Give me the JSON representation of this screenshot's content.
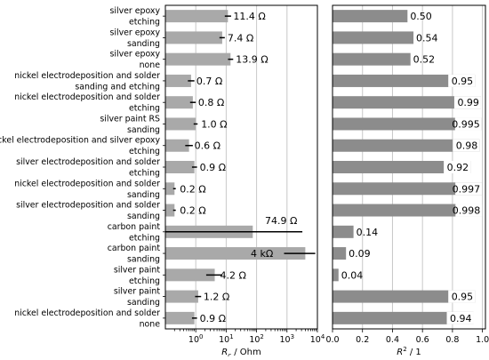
{
  "chart_data": [
    {
      "type": "bar",
      "orientation": "horizontal",
      "scale": "log",
      "xlim": [
        0.1,
        10000
      ],
      "xlabel": "R_c / Ohm",
      "x_ticks": [
        {
          "value": 1,
          "base": "10",
          "exp": "0"
        },
        {
          "value": 10,
          "base": "10",
          "exp": "1"
        },
        {
          "value": 100,
          "base": "10",
          "exp": "2"
        },
        {
          "value": 1000,
          "base": "10",
          "exp": "3"
        },
        {
          "value": 10000,
          "base": "10",
          "exp": "4"
        }
      ],
      "grid": true,
      "bar_color": "#a9a9a9",
      "error_color": "#000000",
      "categories": [
        [
          "silver epoxy",
          "etching"
        ],
        [
          "silver epoxy",
          "sanding"
        ],
        [
          "silver epoxy",
          "none"
        ],
        [
          "nickel electrodeposition and solder",
          "sanding and etching"
        ],
        [
          "nickel electrodeposition and solder",
          "etching"
        ],
        [
          "silver paint RS",
          "sanding"
        ],
        [
          "nickel electrodeposition and silver epoxy",
          "etching"
        ],
        [
          "silver electrodeposition and solder",
          "etching"
        ],
        [
          "nickel electrodeposition and solder",
          "sanding"
        ],
        [
          "silver electrodeposition and solder",
          "sanding"
        ],
        [
          "carbon paint",
          "etching"
        ],
        [
          "carbon paint",
          "sanding"
        ],
        [
          "silver paint",
          "etching"
        ],
        [
          "silver paint",
          "sanding"
        ],
        [
          "nickel electrodeposition and solder",
          "none"
        ]
      ],
      "values": [
        11.4,
        7.4,
        13.9,
        0.7,
        0.8,
        1.0,
        0.6,
        0.9,
        0.2,
        0.2,
        74.9,
        4000,
        4.2,
        1.2,
        0.9
      ],
      "errors": [
        [
          9.0,
          14.5
        ],
        [
          6.0,
          9.0
        ],
        [
          11.5,
          17.0
        ],
        [
          0.55,
          0.9
        ],
        [
          0.65,
          1.0
        ],
        [
          0.85,
          1.15
        ],
        [
          0.45,
          0.8
        ],
        [
          0.75,
          1.1
        ],
        [
          0.18,
          0.22
        ],
        [
          0.18,
          0.22
        ],
        [
          0.1,
          3200
        ],
        [
          800,
          8500
        ],
        [
          2.2,
          7.5
        ],
        [
          0.95,
          1.5
        ],
        [
          0.75,
          1.1
        ]
      ],
      "labels": [
        "11.4 Ω",
        "7.4 Ω",
        "13.9 Ω",
        "0.7 Ω",
        "0.8 Ω",
        "1.0 Ω",
        "0.6 Ω",
        "0.9 Ω",
        "0.2 Ω",
        "0.2 Ω",
        "74.9 Ω",
        "4 kΩ",
        "4.2 Ω",
        "1.2 Ω",
        "0.9 Ω"
      ]
    },
    {
      "type": "bar",
      "orientation": "horizontal",
      "xlim": [
        0,
        1.02
      ],
      "xlabel": "R^2 / 1",
      "x_ticks": [
        "0.0",
        "0.2",
        "0.4",
        "0.6",
        "0.8",
        "1.0"
      ],
      "grid": true,
      "bar_color": "#8c8c8c",
      "values": [
        0.5,
        0.54,
        0.52,
        0.95,
        0.99,
        0.995,
        0.98,
        0.92,
        0.997,
        0.998,
        0.14,
        0.09,
        0.04,
        0.95,
        0.94
      ],
      "labels": [
        "0.50",
        "0.54",
        "0.52",
        "0.95",
        "0.99",
        "0.995",
        "0.98",
        "0.92",
        "0.997",
        "0.998",
        "0.14",
        "0.09",
        "0.04",
        "0.95",
        "0.94"
      ]
    }
  ]
}
